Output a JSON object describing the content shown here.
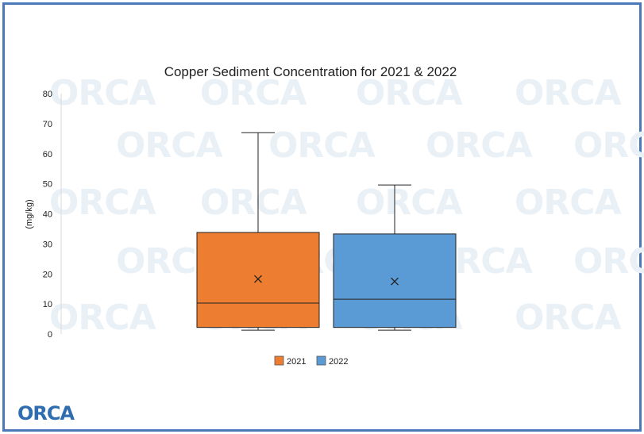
{
  "colors": {
    "frame": "#4a78b8",
    "s2021": "#ed7d31",
    "s2022": "#5b9bd5",
    "logo": "#2f6db0",
    "watermark": "#e9f0f6"
  },
  "watermark": {
    "text": "ORCA"
  },
  "logo": {
    "text": "ORCA"
  },
  "chart_data": {
    "type": "box",
    "title": "Copper Sediment Concentration for 2021 & 2022",
    "xlabel": "",
    "ylabel": "(mg/kg)",
    "ylim": [
      0,
      80
    ],
    "yticks": [
      0,
      10,
      20,
      30,
      40,
      50,
      60,
      70,
      80
    ],
    "grid": false,
    "legend": "bottom-center",
    "series": [
      {
        "name": "2021",
        "color": "#ed7d31",
        "min": 1.3,
        "q1": 2.2,
        "median": 10.3,
        "q3": 33.8,
        "max": 67.0,
        "mean": 18.3
      },
      {
        "name": "2022",
        "color": "#5b9bd5",
        "min": 1.3,
        "q1": 2.2,
        "median": 11.6,
        "q3": 33.3,
        "max": 49.6,
        "mean": 17.5
      }
    ]
  }
}
